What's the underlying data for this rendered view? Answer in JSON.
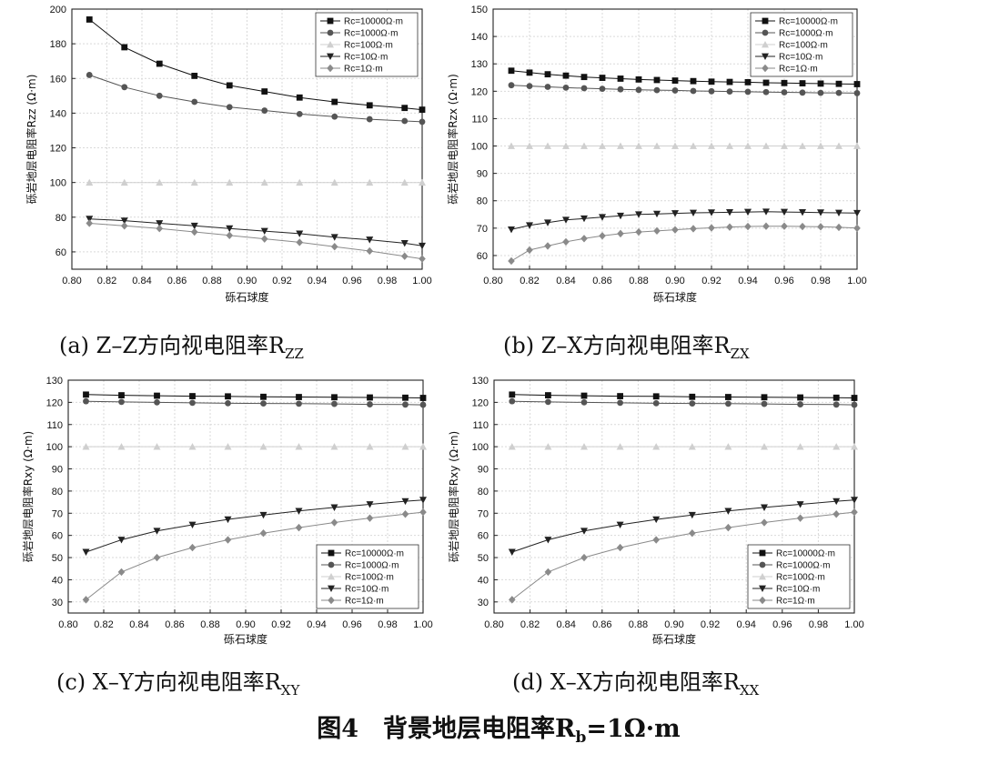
{
  "figure": {
    "title": "图4　背景地层电阻率R",
    "title_sub": "b",
    "title_tail": "=1Ω·m"
  },
  "chart_data": [
    {
      "type": "line",
      "caption": "(a)  Z–Z方向视电阻率R",
      "caption_sub": "ZZ",
      "xlabel": "砾石球度",
      "ylabel": "砾岩地层电阻率Rzz (Ω·m)",
      "xlim": [
        0.8,
        1.0
      ],
      "ylim": [
        50,
        200
      ],
      "xticks": [
        "0.80",
        "0.82",
        "0.84",
        "0.86",
        "0.88",
        "0.90",
        "0.92",
        "0.94",
        "0.96",
        "0.98",
        "1.00"
      ],
      "yticks": [
        "60",
        "80",
        "100",
        "120",
        "140",
        "160",
        "180",
        "200"
      ],
      "legend_position": "top-right",
      "x": [
        0.81,
        0.83,
        0.85,
        0.87,
        0.89,
        0.91,
        0.93,
        0.95,
        0.97,
        0.99,
        1.0
      ],
      "series": [
        {
          "name": "Rc=10000Ω·m",
          "marker": "square",
          "values": [
            194,
            178,
            168.5,
            161.5,
            156,
            152.5,
            149,
            146.5,
            144.5,
            143,
            142
          ]
        },
        {
          "name": "Rc=1000Ω·m",
          "marker": "circle",
          "values": [
            162,
            155,
            150,
            146.5,
            143.5,
            141.5,
            139.5,
            138,
            136.5,
            135.5,
            135
          ]
        },
        {
          "name": "Rc=100Ω·m",
          "marker": "triangle-up",
          "values": [
            100,
            100,
            100,
            100,
            100,
            100,
            100,
            100,
            100,
            100,
            100
          ]
        },
        {
          "name": "Rc=10Ω·m",
          "marker": "triangle-down",
          "values": [
            79,
            78,
            76.5,
            75,
            73.5,
            72,
            70.5,
            68.5,
            67,
            65,
            63.5
          ]
        },
        {
          "name": "Rc=1Ω·m",
          "marker": "diamond",
          "values": [
            76.5,
            75,
            73.5,
            71.5,
            69.5,
            67.5,
            65.5,
            63,
            60.5,
            57.5,
            56
          ]
        }
      ]
    },
    {
      "type": "line",
      "caption": "(b)  Z–X方向视电阻率R",
      "caption_sub": "ZX",
      "xlabel": "砾石球度",
      "ylabel": "砾岩地层电阻率Rzx (Ω·m)",
      "xlim": [
        0.8,
        1.0
      ],
      "ylim": [
        55,
        150
      ],
      "xticks": [
        "0.80",
        "0.82",
        "0.84",
        "0.86",
        "0.88",
        "0.90",
        "0.92",
        "0.94",
        "0.96",
        "0.98",
        "1.00"
      ],
      "yticks": [
        "60",
        "70",
        "80",
        "90",
        "100",
        "110",
        "120",
        "130",
        "140",
        "150"
      ],
      "legend_position": "top-right",
      "x": [
        0.81,
        0.82,
        0.83,
        0.84,
        0.85,
        0.86,
        0.87,
        0.88,
        0.89,
        0.9,
        0.91,
        0.92,
        0.93,
        0.94,
        0.95,
        0.96,
        0.97,
        0.98,
        0.99,
        1.0
      ],
      "series": [
        {
          "name": "Rc=10000Ω·m",
          "marker": "square",
          "values": [
            127.5,
            126.8,
            126.2,
            125.7,
            125.2,
            124.9,
            124.6,
            124.3,
            124.1,
            123.9,
            123.7,
            123.5,
            123.4,
            123.3,
            123.1,
            123,
            122.9,
            122.8,
            122.7,
            122.6
          ]
        },
        {
          "name": "Rc=1000Ω·m",
          "marker": "circle",
          "values": [
            122.2,
            121.9,
            121.6,
            121.3,
            121.1,
            120.9,
            120.7,
            120.5,
            120.4,
            120.3,
            120.1,
            120,
            119.9,
            119.8,
            119.7,
            119.6,
            119.5,
            119.4,
            119.4,
            119.3
          ]
        },
        {
          "name": "Rc=100Ω·m",
          "marker": "triangle-up",
          "values": [
            100,
            100,
            100,
            100,
            100,
            100,
            100,
            100,
            100,
            100,
            100,
            100,
            100,
            100,
            100,
            100,
            100,
            100,
            100,
            100
          ]
        },
        {
          "name": "Rc=10Ω·m",
          "marker": "triangle-down",
          "values": [
            69.5,
            71,
            72,
            73,
            73.5,
            74,
            74.5,
            75,
            75.2,
            75.4,
            75.6,
            75.7,
            75.8,
            75.9,
            76,
            75.9,
            75.8,
            75.7,
            75.6,
            75.5
          ]
        },
        {
          "name": "Rc=1Ω·m",
          "marker": "diamond",
          "values": [
            58,
            62,
            63.5,
            65,
            66.2,
            67.2,
            68,
            68.6,
            69,
            69.4,
            69.8,
            70.1,
            70.4,
            70.6,
            70.7,
            70.7,
            70.6,
            70.5,
            70.3,
            70
          ]
        }
      ]
    },
    {
      "type": "line",
      "caption": "(c)  X–Y方向视电阻率R",
      "caption_sub": "XY",
      "xlabel": "砾石球度",
      "ylabel": "砾岩地层电阻率Rxy (Ω·m)",
      "xlim": [
        0.8,
        1.0
      ],
      "ylim": [
        25,
        130
      ],
      "xticks": [
        "0.80",
        "0.82",
        "0.84",
        "0.86",
        "0.88",
        "0.90",
        "0.92",
        "0.94",
        "0.96",
        "0.98",
        "1.00"
      ],
      "yticks": [
        "30",
        "40",
        "50",
        "60",
        "70",
        "80",
        "90",
        "100",
        "110",
        "120",
        "130"
      ],
      "legend_position": "bottom-right",
      "x": [
        0.81,
        0.83,
        0.85,
        0.87,
        0.89,
        0.91,
        0.93,
        0.95,
        0.97,
        0.99,
        1.0
      ],
      "series": [
        {
          "name": "Rc=10000Ω·m",
          "marker": "square",
          "values": [
            123.5,
            123.2,
            123,
            122.8,
            122.7,
            122.5,
            122.4,
            122.3,
            122.2,
            122.1,
            122
          ]
        },
        {
          "name": "Rc=1000Ω·m",
          "marker": "circle",
          "values": [
            120.5,
            120.2,
            120,
            119.8,
            119.6,
            119.5,
            119.4,
            119.3,
            119.1,
            119,
            118.9
          ]
        },
        {
          "name": "Rc=100Ω·m",
          "marker": "triangle-up",
          "values": [
            100,
            100,
            100,
            100,
            100,
            100,
            100,
            100,
            100,
            100,
            100
          ]
        },
        {
          "name": "Rc=10Ω·m",
          "marker": "triangle-down",
          "values": [
            52.5,
            58,
            62,
            64.8,
            67.2,
            69.2,
            71,
            72.6,
            74,
            75.4,
            76
          ]
        },
        {
          "name": "Rc=1Ω·m",
          "marker": "diamond",
          "values": [
            31,
            43.5,
            50,
            54.5,
            58,
            61,
            63.5,
            65.8,
            67.8,
            69.6,
            70.5
          ]
        }
      ]
    },
    {
      "type": "line",
      "caption": "(d)  X–X方向视电阻率R",
      "caption_sub": "XX",
      "xlabel": "砾石球度",
      "ylabel": "砾岩地层电阻率Rxy (Ω·m)",
      "xlim": [
        0.8,
        1.0
      ],
      "ylim": [
        25,
        130
      ],
      "xticks": [
        "0.80",
        "0.82",
        "0.84",
        "0.86",
        "0.88",
        "0.90",
        "0.92",
        "0.94",
        "0.96",
        "0.98",
        "1.00"
      ],
      "yticks": [
        "30",
        "40",
        "50",
        "60",
        "70",
        "80",
        "90",
        "100",
        "110",
        "120",
        "130"
      ],
      "legend_position": "bottom-right",
      "x": [
        0.81,
        0.83,
        0.85,
        0.87,
        0.89,
        0.91,
        0.93,
        0.95,
        0.97,
        0.99,
        1.0
      ],
      "series": [
        {
          "name": "Rc=10000Ω·m",
          "marker": "square",
          "values": [
            123.5,
            123.2,
            123,
            122.8,
            122.7,
            122.5,
            122.4,
            122.3,
            122.2,
            122.1,
            122
          ]
        },
        {
          "name": "Rc=1000Ω·m",
          "marker": "circle",
          "values": [
            120.5,
            120.2,
            120,
            119.8,
            119.6,
            119.5,
            119.4,
            119.3,
            119.1,
            119,
            118.9
          ]
        },
        {
          "name": "Rc=100Ω·m",
          "marker": "triangle-up",
          "values": [
            100,
            100,
            100,
            100,
            100,
            100,
            100,
            100,
            100,
            100,
            100
          ]
        },
        {
          "name": "Rc=10Ω·m",
          "marker": "triangle-down",
          "values": [
            52.5,
            58,
            62,
            64.8,
            67.2,
            69.2,
            71,
            72.6,
            74,
            75.4,
            76
          ]
        },
        {
          "name": "Rc=1Ω·m",
          "marker": "diamond",
          "values": [
            31,
            43.5,
            50,
            54.5,
            58,
            61,
            63.5,
            65.8,
            67.8,
            69.6,
            70.5
          ]
        }
      ]
    }
  ],
  "style": {
    "series_colors": [
      "#111111",
      "#555555",
      "#cfcfcf",
      "#222222",
      "#8a8a8a"
    ],
    "grid_color": "#d9d9d9",
    "axis_color": "#222222"
  }
}
